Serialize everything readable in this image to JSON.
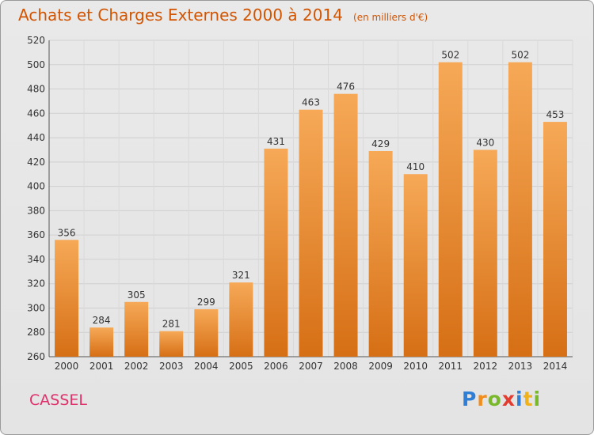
{
  "title": "Achats et Charges Externes 2000 à 2014",
  "unit": "(en milliers d'€)",
  "commune": "CASSEL",
  "logo_text": "Proxiti",
  "colors": {
    "bar_light": "#f5a54e",
    "bar_dark": "#d9731a",
    "title": "#d35400",
    "commune": "#e0306a"
  },
  "chart_data": {
    "type": "bar",
    "categories": [
      "2000",
      "2001",
      "2002",
      "2003",
      "2004",
      "2005",
      "2006",
      "2007",
      "2008",
      "2009",
      "2010",
      "2011",
      "2012",
      "2013",
      "2014"
    ],
    "values": [
      356,
      284,
      305,
      281,
      299,
      321,
      431,
      463,
      476,
      429,
      410,
      502,
      430,
      502,
      453
    ],
    "ylim": [
      260,
      520
    ],
    "yticks": [
      260,
      280,
      300,
      320,
      340,
      360,
      380,
      400,
      420,
      440,
      460,
      480,
      500,
      520
    ],
    "grid": true,
    "data_labels": true
  }
}
